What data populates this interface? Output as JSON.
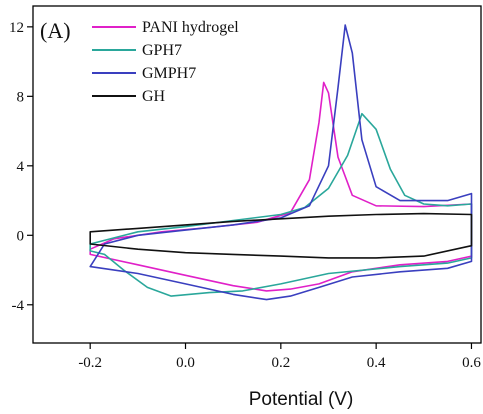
{
  "chart_data": {
    "type": "line",
    "panel_label": "(A)",
    "xlabel": "Potential (V)",
    "ylabel": "",
    "xlim": [
      -0.32,
      0.62
    ],
    "ylim": [
      -6.2,
      13.2
    ],
    "xticks": [
      -0.2,
      0.0,
      0.2,
      0.4,
      0.6
    ],
    "xtick_labels": [
      "-0.2",
      "0.0",
      "0.2",
      "0.4",
      "0.6"
    ],
    "yticks": [
      -4,
      0,
      4,
      8,
      12
    ],
    "ytick_labels": [
      "-4",
      "0",
      "4",
      "8",
      "12"
    ],
    "legend_position": "top-left",
    "series": [
      {
        "name": "PANI hydrogel",
        "color": "#e020c8",
        "points": [
          [
            -0.2,
            -0.8
          ],
          [
            -0.15,
            -0.2
          ],
          [
            -0.05,
            0.2
          ],
          [
            0.05,
            0.45
          ],
          [
            0.15,
            0.75
          ],
          [
            0.22,
            1.3
          ],
          [
            0.26,
            3.2
          ],
          [
            0.28,
            6.5
          ],
          [
            0.29,
            8.8
          ],
          [
            0.3,
            8.2
          ],
          [
            0.32,
            4.5
          ],
          [
            0.35,
            2.3
          ],
          [
            0.4,
            1.7
          ],
          [
            0.5,
            1.65
          ],
          [
            0.6,
            1.8
          ],
          [
            0.6,
            -1.2
          ],
          [
            0.55,
            -1.5
          ],
          [
            0.45,
            -1.7
          ],
          [
            0.35,
            -2.1
          ],
          [
            0.28,
            -2.8
          ],
          [
            0.22,
            -3.1
          ],
          [
            0.17,
            -3.2
          ],
          [
            0.1,
            -2.9
          ],
          [
            0.0,
            -2.3
          ],
          [
            -0.1,
            -1.7
          ],
          [
            -0.2,
            -1.1
          ],
          [
            -0.2,
            -0.8
          ]
        ]
      },
      {
        "name": "GPH7",
        "color": "#2aa79b",
        "points": [
          [
            -0.2,
            -0.5
          ],
          [
            -0.1,
            0.2
          ],
          [
            0.0,
            0.5
          ],
          [
            0.1,
            0.85
          ],
          [
            0.2,
            1.2
          ],
          [
            0.25,
            1.6
          ],
          [
            0.3,
            2.7
          ],
          [
            0.34,
            4.6
          ],
          [
            0.37,
            7.0
          ],
          [
            0.4,
            6.1
          ],
          [
            0.43,
            3.8
          ],
          [
            0.46,
            2.3
          ],
          [
            0.5,
            1.8
          ],
          [
            0.55,
            1.7
          ],
          [
            0.6,
            1.8
          ],
          [
            0.6,
            -1.3
          ],
          [
            0.55,
            -1.6
          ],
          [
            0.45,
            -1.8
          ],
          [
            0.3,
            -2.2
          ],
          [
            0.2,
            -2.8
          ],
          [
            0.12,
            -3.2
          ],
          [
            0.05,
            -3.3
          ],
          [
            -0.03,
            -3.5
          ],
          [
            -0.08,
            -3.0
          ],
          [
            -0.13,
            -2.0
          ],
          [
            -0.17,
            -1.1
          ],
          [
            -0.2,
            -0.9
          ],
          [
            -0.2,
            -0.5
          ]
        ]
      },
      {
        "name": "GMPH7",
        "color": "#3a3fbf",
        "points": [
          [
            -0.2,
            -1.8
          ],
          [
            -0.17,
            -0.5
          ],
          [
            -0.1,
            0.0
          ],
          [
            0.0,
            0.3
          ],
          [
            0.1,
            0.6
          ],
          [
            0.2,
            1.0
          ],
          [
            0.26,
            1.7
          ],
          [
            0.3,
            4.0
          ],
          [
            0.32,
            8.5
          ],
          [
            0.335,
            12.1
          ],
          [
            0.35,
            10.5
          ],
          [
            0.37,
            5.5
          ],
          [
            0.4,
            2.8
          ],
          [
            0.45,
            2.0
          ],
          [
            0.55,
            2.0
          ],
          [
            0.6,
            2.4
          ],
          [
            0.6,
            -1.5
          ],
          [
            0.55,
            -1.9
          ],
          [
            0.45,
            -2.1
          ],
          [
            0.35,
            -2.4
          ],
          [
            0.28,
            -3.0
          ],
          [
            0.22,
            -3.5
          ],
          [
            0.17,
            -3.7
          ],
          [
            0.1,
            -3.4
          ],
          [
            0.0,
            -2.8
          ],
          [
            -0.1,
            -2.2
          ],
          [
            -0.2,
            -1.8
          ]
        ]
      },
      {
        "name": "GH",
        "color": "#111111",
        "points": [
          [
            -0.2,
            0.2
          ],
          [
            -0.1,
            0.4
          ],
          [
            0.0,
            0.6
          ],
          [
            0.1,
            0.8
          ],
          [
            0.2,
            0.95
          ],
          [
            0.3,
            1.1
          ],
          [
            0.4,
            1.2
          ],
          [
            0.5,
            1.25
          ],
          [
            0.6,
            1.2
          ],
          [
            0.6,
            -0.6
          ],
          [
            0.5,
            -1.2
          ],
          [
            0.4,
            -1.3
          ],
          [
            0.3,
            -1.3
          ],
          [
            0.2,
            -1.2
          ],
          [
            0.1,
            -1.1
          ],
          [
            0.0,
            -1.0
          ],
          [
            -0.1,
            -0.8
          ],
          [
            -0.2,
            -0.5
          ],
          [
            -0.2,
            0.2
          ]
        ]
      }
    ]
  }
}
